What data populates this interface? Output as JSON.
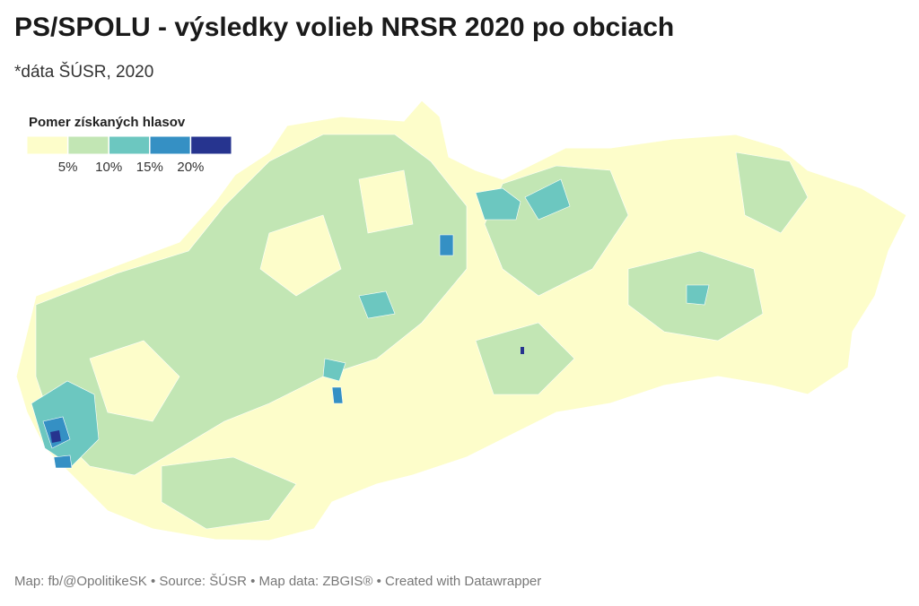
{
  "header": {
    "title": "PS/SPOLU - výsledky volieb NRSR 2020 po obciach",
    "subtitle": "*dáta ŠÚSR, 2020"
  },
  "legend": {
    "title": "Pomer získaných hlasov",
    "colors": [
      "#fdfdca",
      "#c2e6b4",
      "#6cc7c0",
      "#3590c4",
      "#26348f"
    ],
    "lim": [
      0,
      25
    ],
    "ticks": [
      {
        "value": 5,
        "label": "5%"
      },
      {
        "value": 10,
        "label": "10%"
      },
      {
        "value": 15,
        "label": "15%"
      },
      {
        "value": 20,
        "label": "20%"
      }
    ]
  },
  "footer": {
    "text": "Map: fb/@OpolitikeSK • Source: ŠÚSR • Map data: ZBGIS® • Created with Datawrapper"
  }
}
